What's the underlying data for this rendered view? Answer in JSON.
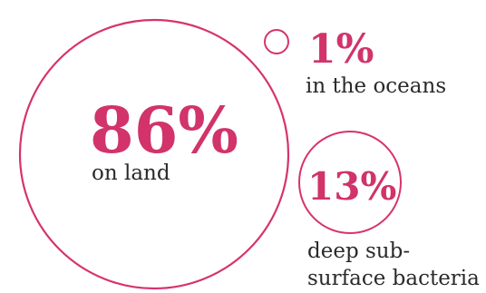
{
  "chart_data": {
    "type": "bubble",
    "unit": "%",
    "accent_color": "#d1336a",
    "items": [
      {
        "value": 86,
        "value_label": "86%",
        "label_lines": [
          "on land"
        ]
      },
      {
        "value": 1,
        "value_label": "1%",
        "label_lines": [
          "in the oceans"
        ]
      },
      {
        "value": 13,
        "value_label": "13%",
        "label_lines": [
          "deep sub-",
          "surface bacteria"
        ]
      }
    ]
  }
}
